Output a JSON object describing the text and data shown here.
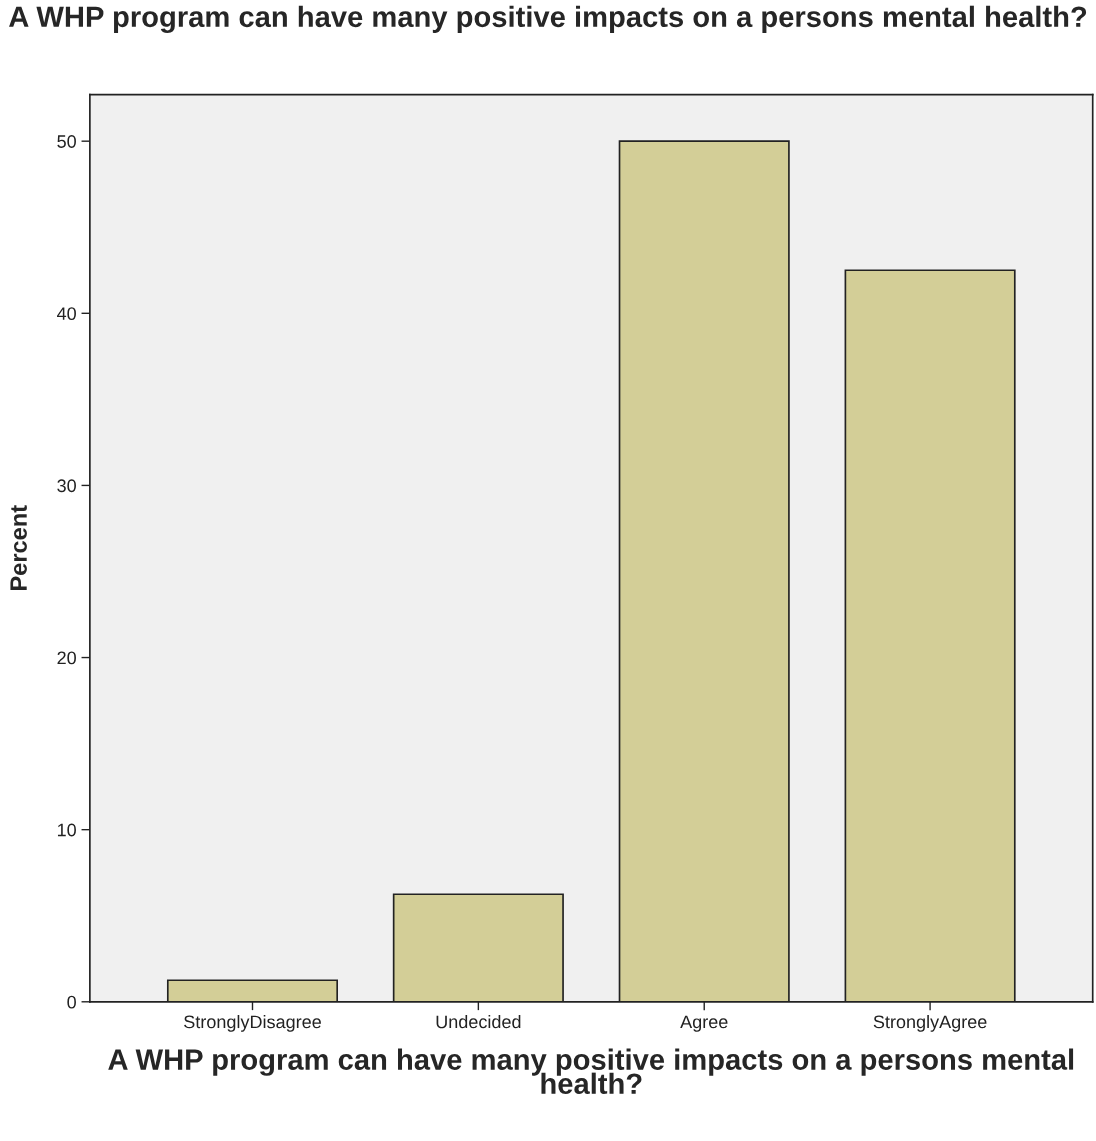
{
  "chart_data": {
    "type": "bar",
    "title": "A WHP program can have many positive impacts on a persons mental health?",
    "xlabel": "A WHP program can have many positive impacts on a persons mental health?",
    "ylabel": "Percent",
    "categories": [
      "StronglyDisagree",
      "Undecided",
      "Agree",
      "StronglyAgree"
    ],
    "values": [
      1.25,
      6.25,
      50,
      42.5
    ],
    "color": "#d3ce97",
    "ylim": [
      0,
      52.7
    ],
    "yticks": [
      0,
      10,
      20,
      30,
      40,
      50
    ],
    "grid": false
  }
}
